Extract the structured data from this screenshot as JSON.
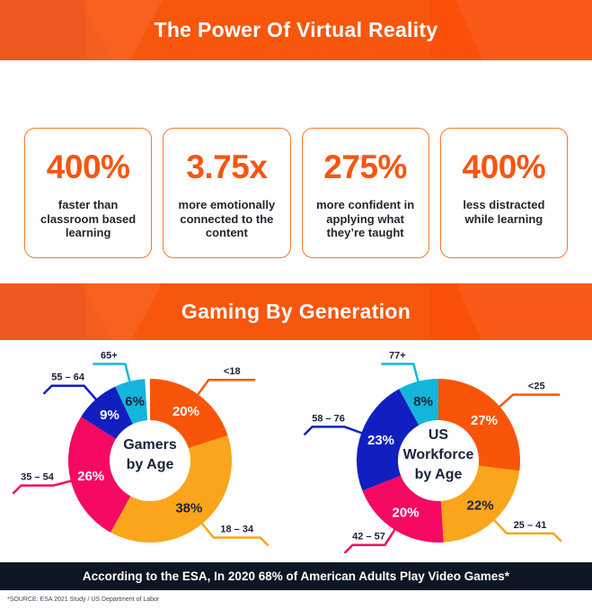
{
  "header": {
    "title": "The Power Of Virtual Reality"
  },
  "stats": [
    {
      "value": "400%",
      "description": "faster than\nclassroom based\nlearning"
    },
    {
      "value": "3.75x",
      "description": "more emotionally\nconnected to the\ncontent"
    },
    {
      "value": "275%",
      "description": "more confident in\napplying what\nthey’re taught"
    },
    {
      "value": "400%",
      "description": "less distracted\nwhile learning"
    }
  ],
  "section": {
    "title": "Gaming By Generation"
  },
  "chart_data": [
    {
      "type": "pie",
      "style": "donut",
      "title": "Gamers by Age",
      "center_label_lines": [
        "Gamers",
        "by Age"
      ],
      "unit": "%",
      "start_angle_deg": 0,
      "direction": "clockwise",
      "segments": [
        {
          "label": "<18",
          "value": 20,
          "color": "#F8550A",
          "value_label_color": "#FFFFFF"
        },
        {
          "label": "18 – 34",
          "value": 38,
          "color": "#FAA51C",
          "value_label_color": "#18223C"
        },
        {
          "label": "35 – 54",
          "value": 26,
          "color": "#F50963",
          "value_label_color": "#FFFFFF"
        },
        {
          "label": "55 – 64",
          "value": 9,
          "color": "#121FC0",
          "value_label_color": "#FFFFFF"
        },
        {
          "label": "65+",
          "value": 6,
          "color": "#14B5DB",
          "value_label_color": "#18223C"
        }
      ]
    },
    {
      "type": "pie",
      "style": "donut",
      "title": "US Workforce by Age",
      "center_label_lines": [
        "US",
        "Workforce",
        "by Age"
      ],
      "unit": "%",
      "start_angle_deg": 0,
      "direction": "clockwise",
      "segments": [
        {
          "label": "<25",
          "value": 27,
          "color": "#F8550A",
          "value_label_color": "#FFFFFF"
        },
        {
          "label": "25 – 41",
          "value": 22,
          "color": "#FAA51C",
          "value_label_color": "#18223C"
        },
        {
          "label": "42 – 57",
          "value": 20,
          "color": "#F50963",
          "value_label_color": "#FFFFFF"
        },
        {
          "label": "58 – 76",
          "value": 23,
          "color": "#121FC0",
          "value_label_color": "#FFFFFF"
        },
        {
          "label": "77+",
          "value": 8,
          "color": "#14B5DB",
          "value_label_color": "#18223C"
        }
      ]
    }
  ],
  "footer": {
    "banner_text": "According to the ESA, In 2020 68% of American Adults Play Video Games*"
  },
  "source_note": "*SOURCE: ESA 2021 Study / US Department of Labor",
  "colors": {
    "accent_orange": "#F7560D",
    "amber": "#FAA51C",
    "pink": "#F50963",
    "blue": "#121FC0",
    "cyan": "#14B5DB",
    "navy_text": "#18223C",
    "footer_bg": "#0E1523",
    "card_border": "#F8772A"
  }
}
